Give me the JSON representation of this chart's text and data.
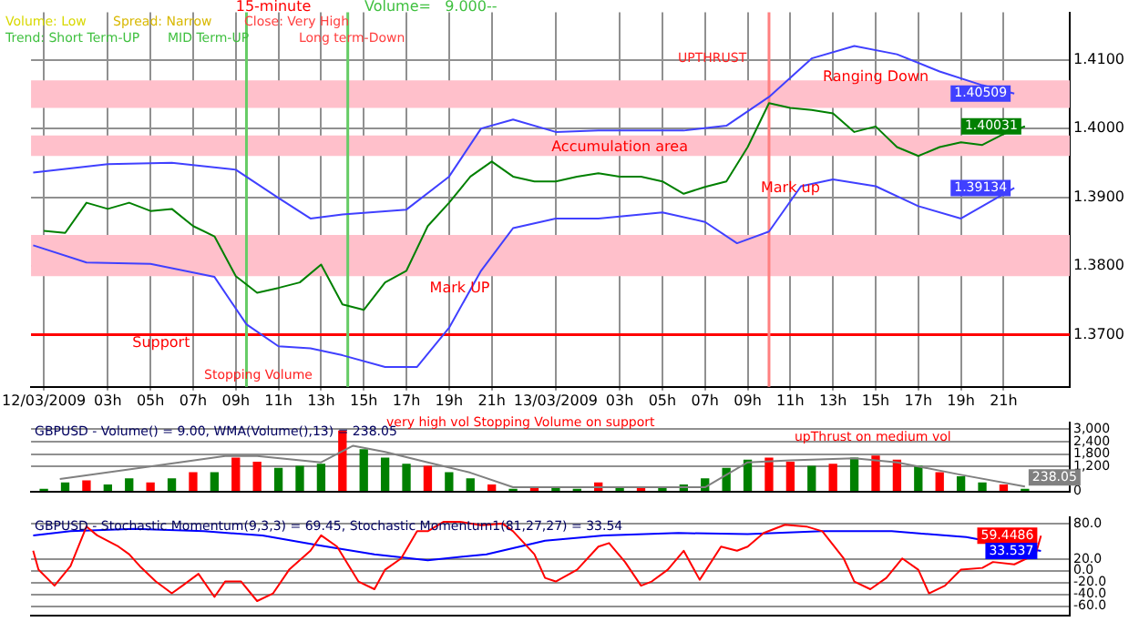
{
  "chart_data": [
    {
      "type": "line",
      "title": "15-minute",
      "subtitle": "Volume=   9.000--",
      "annotations": [
        "Volume: Low",
        "Spread: Narrow",
        "Close: Very High",
        "Trend: Short Term-UP",
        "MID Term-UP",
        "Long term-Down",
        "Stopping Volume",
        "UPTHRUST",
        {
          "text": "Support",
          "x": "2009-03-12T05:30",
          "y": 1.3688
        },
        {
          "text": "Mark UP",
          "x": "2009-03-12T19:30",
          "y": 1.3767
        },
        {
          "text": "Accumulation area",
          "x": "2009-03-13T03:00",
          "y": 1.3972
        },
        {
          "text": "Mark up",
          "x": "2009-03-13T11:00",
          "y": 1.3913
        },
        {
          "text": "Ranging Down",
          "x": "2009-03-13T15:00",
          "y": 1.4075
        }
      ],
      "xlim": [
        "2009-03-11T23:24",
        "2009-03-14T00:06"
      ],
      "xticks": [
        {
          "value": "2009-03-12T00:00",
          "label": "12/03/2009"
        },
        {
          "value": "2009-03-12T03:00",
          "label": "03h"
        },
        {
          "value": "2009-03-12T05:00",
          "label": "05h"
        },
        {
          "value": "2009-03-12T07:00",
          "label": "07h"
        },
        {
          "value": "2009-03-12T09:00",
          "label": "09h"
        },
        {
          "value": "2009-03-12T11:00",
          "label": "11h"
        },
        {
          "value": "2009-03-12T13:00",
          "label": "13h"
        },
        {
          "value": "2009-03-12T15:00",
          "label": "15h"
        },
        {
          "value": "2009-03-12T17:00",
          "label": "17h"
        },
        {
          "value": "2009-03-12T19:00",
          "label": "19h"
        },
        {
          "value": "2009-03-12T21:00",
          "label": "21h"
        },
        {
          "value": "2009-03-13T00:00",
          "label": "13/03/2009"
        },
        {
          "value": "2009-03-13T03:00",
          "label": "03h"
        },
        {
          "value": "2009-03-13T05:00",
          "label": "05h"
        },
        {
          "value": "2009-03-13T07:00",
          "label": "07h"
        },
        {
          "value": "2009-03-13T09:00",
          "label": "09h"
        },
        {
          "value": "2009-03-13T11:00",
          "label": "11h"
        },
        {
          "value": "2009-03-13T13:00",
          "label": "13h"
        },
        {
          "value": "2009-03-13T15:00",
          "label": "15h"
        },
        {
          "value": "2009-03-13T17:00",
          "label": "17h"
        },
        {
          "value": "2009-03-13T19:00",
          "label": "19h"
        },
        {
          "value": "2009-03-13T21:00",
          "label": "21h"
        }
      ],
      "ylim": [
        1.3624,
        1.4169
      ],
      "yticks": [
        {
          "value": 1.37,
          "label": "1.3700"
        },
        {
          "value": 1.38,
          "label": "1.3800"
        },
        {
          "value": 1.39,
          "label": "1.3900"
        },
        {
          "value": 1.4,
          "label": "1.4000"
        },
        {
          "value": 1.41,
          "label": "1.4100"
        }
      ],
      "grid": true,
      "line_style": "solid",
      "bands": [
        {
          "axis": "y",
          "from": 1.403,
          "to": 1.407,
          "color": "#ffc0cb"
        },
        {
          "axis": "y",
          "from": 1.396,
          "to": 1.399,
          "color": "#ffc0cb"
        },
        {
          "axis": "y",
          "from": 1.3785,
          "to": 1.3845,
          "color": "#ffc0cb"
        }
      ],
      "ref_lines": [
        {
          "axis": "y",
          "value": 1.37,
          "color": "#ff0000"
        },
        {
          "axis": "x",
          "value": "2009-03-12T09:30",
          "color": "#66cc66"
        },
        {
          "axis": "x",
          "value": "2009-03-12T14:15",
          "color": "#66cc66"
        },
        {
          "axis": "x",
          "value": "2009-03-13T10:00",
          "color": "#ff8080"
        }
      ],
      "series": [
        {
          "color": "#008000",
          "x": [
            "2009-03-12T00:00",
            "2009-03-12T01:00",
            "2009-03-12T02:00",
            "2009-03-12T03:00",
            "2009-03-12T04:00",
            "2009-03-12T05:00",
            "2009-03-12T06:00",
            "2009-03-12T07:00",
            "2009-03-12T08:00",
            "2009-03-12T09:00",
            "2009-03-12T10:00",
            "2009-03-12T11:00",
            "2009-03-12T12:00",
            "2009-03-12T13:00",
            "2009-03-12T14:00",
            "2009-03-12T15:00",
            "2009-03-12T16:00",
            "2009-03-12T17:00",
            "2009-03-12T18:00",
            "2009-03-12T19:00",
            "2009-03-12T20:00",
            "2009-03-12T21:00",
            "2009-03-12T22:00",
            "2009-03-12T23:00",
            "2009-03-13T00:00",
            "2009-03-13T01:00",
            "2009-03-13T02:00",
            "2009-03-13T03:00",
            "2009-03-13T04:00",
            "2009-03-13T05:00",
            "2009-03-13T06:00",
            "2009-03-13T07:00",
            "2009-03-13T08:00",
            "2009-03-13T09:00",
            "2009-03-13T10:00",
            "2009-03-13T11:00",
            "2009-03-13T12:00",
            "2009-03-13T13:00",
            "2009-03-13T14:00",
            "2009-03-13T15:00",
            "2009-03-13T16:00",
            "2009-03-13T17:00",
            "2009-03-13T18:00",
            "2009-03-13T19:00",
            "2009-03-13T20:00",
            "2009-03-13T21:00",
            "2009-03-13T22:00"
          ],
          "values": [
            1.3851,
            1.3848,
            1.3892,
            1.3883,
            1.3892,
            1.388,
            1.3883,
            1.3858,
            1.3843,
            1.3785,
            1.3761,
            1.3768,
            1.3776,
            1.3802,
            1.3744,
            1.3736,
            1.3776,
            1.3793,
            1.3858,
            1.3892,
            1.393,
            1.3952,
            1.393,
            1.3923,
            1.3923,
            1.393,
            1.3935,
            1.393,
            1.393,
            1.3923,
            1.3905,
            1.3915,
            1.3923,
            1.3973,
            1.4037,
            1.403,
            1.4027,
            1.4022,
            1.3995,
            1.4003,
            1.3973,
            1.396,
            1.3973,
            1.398,
            1.3976,
            1.3992,
            1.40031
          ],
          "value_labels": [
            null,
            null,
            null,
            null,
            null,
            null,
            null,
            null,
            null,
            null,
            null,
            null,
            null,
            null,
            null,
            null,
            null,
            null,
            null,
            null,
            null,
            null,
            null,
            null,
            null,
            null,
            null,
            null,
            null,
            null,
            null,
            null,
            null,
            null,
            null,
            null,
            null,
            null,
            null,
            null,
            null,
            null,
            null,
            null,
            null,
            null,
            "1.40031"
          ]
        },
        {
          "color": "#4040ff",
          "x": [
            "2009-03-11T23:30",
            "2009-03-12T03:00",
            "2009-03-12T06:00",
            "2009-03-12T09:00",
            "2009-03-12T11:00",
            "2009-03-12T12:30",
            "2009-03-12T14:00",
            "2009-03-12T17:00",
            "2009-03-12T19:00",
            "2009-03-12T20:30",
            "2009-03-12T22:00",
            "2009-03-13T00:00",
            "2009-03-13T02:00",
            "2009-03-13T06:00",
            "2009-03-13T08:00",
            "2009-03-13T10:00",
            "2009-03-13T12:00",
            "2009-03-13T14:00",
            "2009-03-13T16:00",
            "2009-03-13T18:00",
            "2009-03-13T20:00",
            "2009-03-13T21:30"
          ],
          "values": [
            1.3936,
            1.3948,
            1.395,
            1.394,
            1.3899,
            1.3869,
            1.3875,
            1.3882,
            1.393,
            1.4,
            1.4013,
            1.3995,
            1.3997,
            1.3997,
            1.4004,
            1.4046,
            1.4102,
            1.412,
            1.4108,
            1.4083,
            1.4063,
            1.40509
          ],
          "value_labels": [
            null,
            null,
            null,
            null,
            null,
            null,
            null,
            null,
            null,
            null,
            null,
            null,
            null,
            null,
            null,
            null,
            null,
            null,
            null,
            null,
            null,
            "1.40509"
          ]
        },
        {
          "color": "#4040ff",
          "x": [
            "2009-03-11T23:30",
            "2009-03-12T02:00",
            "2009-03-12T05:00",
            "2009-03-12T08:00",
            "2009-03-12T09:30",
            "2009-03-12T11:00",
            "2009-03-12T12:30",
            "2009-03-12T14:00",
            "2009-03-12T16:00",
            "2009-03-12T17:30",
            "2009-03-12T19:00",
            "2009-03-12T20:30",
            "2009-03-12T22:00",
            "2009-03-13T00:00",
            "2009-03-13T02:00",
            "2009-03-13T05:00",
            "2009-03-13T07:00",
            "2009-03-13T08:30",
            "2009-03-13T10:00",
            "2009-03-13T11:30",
            "2009-03-13T13:00",
            "2009-03-13T15:00",
            "2009-03-13T17:00",
            "2009-03-13T19:00",
            "2009-03-13T21:30"
          ],
          "values": [
            1.383,
            1.3805,
            1.3803,
            1.3784,
            1.3715,
            1.3683,
            1.368,
            1.367,
            1.3653,
            1.3653,
            1.371,
            1.3793,
            1.3855,
            1.3869,
            1.3869,
            1.3878,
            1.3864,
            1.3833,
            1.385,
            1.3916,
            1.3926,
            1.3916,
            1.3887,
            1.3869,
            1.39134
          ],
          "value_labels": [
            null,
            null,
            null,
            null,
            null,
            null,
            null,
            null,
            null,
            null,
            null,
            null,
            null,
            null,
            null,
            null,
            null,
            null,
            null,
            null,
            null,
            null,
            null,
            null,
            "1.39134"
          ]
        }
      ]
    },
    {
      "type": "bar",
      "title": "GBPUSD - Volume() = 9.00, WMA(Volume(),13) = 238.05",
      "annotations": [
        "very high vol Stopping Volume on support",
        "upThrust on medium vol"
      ],
      "xlim": [
        "2009-03-11T23:24",
        "2009-03-14T00:06"
      ],
      "ylim": [
        0,
        3300
      ],
      "yticks": [
        0,
        {
          "value": 1200,
          "label": "1,200"
        },
        {
          "value": 1800,
          "label": "1,800"
        },
        {
          "value": 2400,
          "label": "2,400"
        },
        {
          "value": 3000,
          "label": "3,000"
        }
      ],
      "tick_labels": "y",
      "grid": "y",
      "series": [
        {
          "type": "bar",
          "x": [
            "2009-03-12T00:00",
            "2009-03-12T01:00",
            "2009-03-12T02:00",
            "2009-03-12T03:00",
            "2009-03-12T04:00",
            "2009-03-12T05:00",
            "2009-03-12T06:00",
            "2009-03-12T07:00",
            "2009-03-12T08:00",
            "2009-03-12T09:00",
            "2009-03-12T10:00",
            "2009-03-12T11:00",
            "2009-03-12T12:00",
            "2009-03-12T13:00",
            "2009-03-12T14:00",
            "2009-03-12T15:00",
            "2009-03-12T16:00",
            "2009-03-12T17:00",
            "2009-03-12T18:00",
            "2009-03-12T19:00",
            "2009-03-12T20:00",
            "2009-03-12T21:00",
            "2009-03-12T22:00",
            "2009-03-12T23:00",
            "2009-03-13T00:00",
            "2009-03-13T01:00",
            "2009-03-13T02:00",
            "2009-03-13T03:00",
            "2009-03-13T04:00",
            "2009-03-13T05:00",
            "2009-03-13T06:00",
            "2009-03-13T07:00",
            "2009-03-13T08:00",
            "2009-03-13T09:00",
            "2009-03-13T10:00",
            "2009-03-13T11:00",
            "2009-03-13T12:00",
            "2009-03-13T13:00",
            "2009-03-13T14:00",
            "2009-03-13T15:00",
            "2009-03-13T16:00",
            "2009-03-13T17:00",
            "2009-03-13T18:00",
            "2009-03-13T19:00",
            "2009-03-13T20:00",
            "2009-03-13T21:00",
            "2009-03-13T22:00"
          ],
          "values": [
            100,
            400,
            500,
            300,
            600,
            400,
            600,
            900,
            900,
            1600,
            1400,
            1100,
            1200,
            1300,
            2900,
            2000,
            1600,
            1300,
            1200,
            900,
            600,
            300,
            100,
            200,
            200,
            100,
            400,
            200,
            200,
            200,
            300,
            600,
            1100,
            1500,
            1600,
            1400,
            1200,
            1300,
            1600,
            1700,
            1500,
            1200,
            900,
            700,
            400,
            300,
            100
          ],
          "colors": [
            "#008000",
            "#008000",
            "#ff0000",
            "#008000",
            "#008000",
            "#ff0000",
            "#008000",
            "#ff0000",
            "#008000",
            "#ff0000",
            "#ff0000",
            "#008000",
            "#008000",
            "#008000",
            "#ff0000",
            "#008000",
            "#008000",
            "#008000",
            "#ff0000",
            "#008000",
            "#008000",
            "#ff0000",
            "#008000",
            "#ff0000",
            "#008000",
            "#008000",
            "#ff0000",
            "#008000",
            "#ff0000",
            "#008000",
            "#008000",
            "#008000",
            "#008000",
            "#008000",
            "#ff0000",
            "#ff0000",
            "#008000",
            "#ff0000",
            "#008000",
            "#ff0000",
            "#ff0000",
            "#008000",
            "#ff0000",
            "#008000",
            "#008000",
            "#ff0000",
            "#008000"
          ]
        },
        {
          "type": "line",
          "color": "#808080",
          "x": [
            "2009-03-12T00:45",
            "2009-03-12T08:30",
            "2009-03-12T10:00",
            "2009-03-12T13:00",
            "2009-03-12T14:30",
            "2009-03-12T16:00",
            "2009-03-12T18:00",
            "2009-03-12T20:00",
            "2009-03-12T22:00",
            "2009-03-13T02:00",
            "2009-03-13T07:00",
            "2009-03-13T09:00",
            "2009-03-13T11:00",
            "2009-03-13T14:00",
            "2009-03-13T16:00",
            "2009-03-13T19:00",
            "2009-03-13T22:00"
          ],
          "values": [
            600,
            1700,
            1700,
            1400,
            2200,
            1900,
            1400,
            900,
            200,
            200,
            200,
            1400,
            1500,
            1600,
            1400,
            800,
            238.05
          ],
          "value_labels": [
            null,
            null,
            null,
            null,
            null,
            null,
            null,
            null,
            null,
            null,
            null,
            null,
            null,
            null,
            null,
            null,
            "238.05"
          ]
        }
      ]
    },
    {
      "type": "line",
      "title": "GBPUSD - Stochastic Momentum(9,3,3) = 69.45, Stochastic Momentum1(81,27,27) = 33.54",
      "xlim": [
        "2009-03-11T23:24",
        "2009-03-14T00:06"
      ],
      "ylim": [
        -75,
        90
      ],
      "yticks": [
        {
          "value": -60,
          "label": "-60.0"
        },
        {
          "value": -40,
          "label": "-40.0"
        },
        {
          "value": -20,
          "label": "-20.0"
        },
        {
          "value": 0,
          "label": "0.0"
        },
        {
          "value": 20,
          "label": "20.0"
        },
        {
          "value": 80,
          "label": "80.0"
        }
      ],
      "tick_labels": "y",
      "grid": "y",
      "series": [
        {
          "color": "#ff0000",
          "x": [
            "2009-03-11T23:30",
            "2009-03-11T23:45",
            "2009-03-12T00:30",
            "2009-03-12T01:15",
            "2009-03-12T02:00",
            "2009-03-12T02:30",
            "2009-03-12T03:30",
            "2009-03-12T04:00",
            "2009-03-12T04:30",
            "2009-03-12T05:15",
            "2009-03-12T06:00",
            "2009-03-12T06:30",
            "2009-03-12T07:15",
            "2009-03-12T08:00",
            "2009-03-12T08:30",
            "2009-03-12T09:15",
            "2009-03-12T10:00",
            "2009-03-12T10:45",
            "2009-03-12T11:30",
            "2009-03-12T12:30",
            "2009-03-12T13:00",
            "2009-03-12T13:45",
            "2009-03-12T14:45",
            "2009-03-12T15:30",
            "2009-03-12T16:00",
            "2009-03-12T16:45",
            "2009-03-12T17:30",
            "2009-03-12T18:00",
            "2009-03-12T18:45",
            "2009-03-12T19:30",
            "2009-03-12T20:30",
            "2009-03-12T21:30",
            "2009-03-12T22:00",
            "2009-03-12T23:00",
            "2009-03-12T23:30",
            "2009-03-13T00:00",
            "2009-03-13T01:00",
            "2009-03-13T02:00",
            "2009-03-13T02:30",
            "2009-03-13T03:15",
            "2009-03-13T04:00",
            "2009-03-13T04:30",
            "2009-03-13T05:15",
            "2009-03-13T06:00",
            "2009-03-13T06:45",
            "2009-03-13T07:45",
            "2009-03-13T08:30",
            "2009-03-13T09:00",
            "2009-03-13T09:45",
            "2009-03-13T10:45",
            "2009-03-13T11:45",
            "2009-03-13T12:30",
            "2009-03-13T13:30",
            "2009-03-13T14:00",
            "2009-03-13T14:45",
            "2009-03-13T15:30",
            "2009-03-13T16:15",
            "2009-03-13T17:00",
            "2009-03-13T17:30",
            "2009-03-13T18:15",
            "2009-03-13T19:00",
            "2009-03-13T20:00",
            "2009-03-13T20:30",
            "2009-03-13T21:30",
            "2009-03-13T22:30",
            "2009-03-13T22:45"
          ],
          "values": [
            34,
            2,
            -25,
            8,
            75,
            60,
            41,
            28,
            8,
            -18,
            -38,
            -25,
            -5,
            -44,
            -18,
            -18,
            -51,
            -38,
            2,
            34,
            60,
            41,
            -18,
            -31,
            2,
            21,
            67,
            67,
            83,
            83,
            77,
            80,
            67,
            28,
            -12,
            -18,
            2,
            41,
            47,
            15,
            -25,
            -18,
            2,
            34,
            -15,
            41,
            34,
            41,
            64,
            78,
            75,
            67,
            21,
            -18,
            -31,
            -12,
            21,
            2,
            -38,
            -25,
            2,
            5,
            15,
            11,
            28,
            59.4486
          ],
          "value_labels": [
            null,
            null,
            null,
            null,
            null,
            null,
            null,
            null,
            null,
            null,
            null,
            null,
            null,
            null,
            null,
            null,
            null,
            null,
            null,
            null,
            null,
            null,
            null,
            null,
            null,
            null,
            null,
            null,
            null,
            null,
            null,
            null,
            null,
            null,
            null,
            null,
            null,
            null,
            null,
            null,
            null,
            null,
            null,
            null,
            null,
            null,
            null,
            null,
            null,
            null,
            null,
            null,
            null,
            null,
            null,
            null,
            null,
            null,
            null,
            null,
            null,
            null,
            null,
            null,
            null,
            "59.4486"
          ]
        },
        {
          "color": "#0000ff",
          "x": [
            "2009-03-11T23:30",
            "2009-03-12T01:15",
            "2009-03-12T04:15",
            "2009-03-12T07:30",
            "2009-03-12T10:15",
            "2009-03-12T12:45",
            "2009-03-12T15:30",
            "2009-03-12T18:00",
            "2009-03-12T20:45",
            "2009-03-12T23:30",
            "2009-03-13T02:15",
            "2009-03-13T05:45",
            "2009-03-13T09:00",
            "2009-03-13T12:30",
            "2009-03-13T15:45",
            "2009-03-13T19:15",
            "2009-03-13T22:45"
          ],
          "values": [
            60,
            67,
            71,
            67,
            60,
            44,
            28,
            18,
            28,
            51,
            60,
            64,
            62,
            67,
            67,
            57,
            33.537
          ],
          "value_labels": [
            null,
            null,
            null,
            null,
            null,
            null,
            null,
            null,
            null,
            null,
            null,
            null,
            null,
            null,
            null,
            null,
            "33.537"
          ]
        }
      ]
    }
  ]
}
